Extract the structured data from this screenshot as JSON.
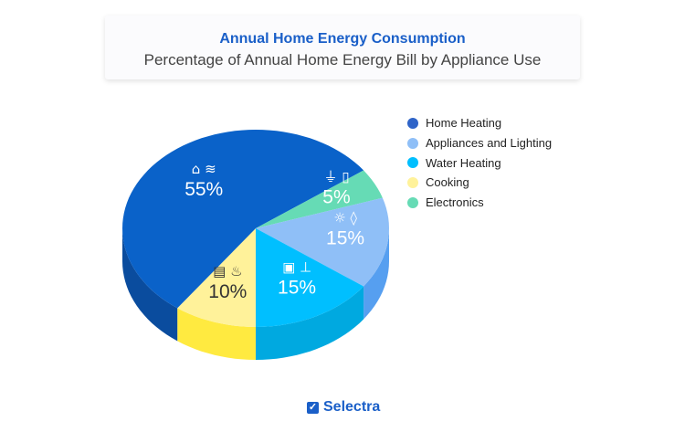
{
  "header": {
    "title": "Annual Home Energy Consumption",
    "subtitle": "Percentage of Annual Home Energy Bill by Appliance Use"
  },
  "chart_data": {
    "type": "pie",
    "style": "3d",
    "title": "Annual Home Energy Consumption",
    "subtitle": "Percentage of Annual Home Energy Bill by Appliance Use",
    "legend_position": "right",
    "slices": [
      {
        "name": "Home Heating",
        "value": 55,
        "label": "55%",
        "color": "#0a62c9",
        "side_color": "#0a4c9e",
        "label_color": "#ffffff",
        "icons": [
          "house-icon",
          "radiator-icon"
        ]
      },
      {
        "name": "Appliances and Lighting",
        "value": 15,
        "label": "15%",
        "color": "#8fbff7",
        "side_color": "#569ff0",
        "label_color": "#ffffff",
        "icons": [
          "lightbulb-icon",
          "water-drop-icon"
        ]
      },
      {
        "name": "Water Heating",
        "value": 15,
        "label": "15%",
        "color": "#00bfff",
        "side_color": "#00a9e0",
        "label_color": "#ffffff",
        "icons": [
          "water-heater-icon",
          "faucet-icon"
        ]
      },
      {
        "name": "Cooking",
        "value": 10,
        "label": "10%",
        "color": "#fff29a",
        "side_color": "#ffea40",
        "label_color": "#333333",
        "icons": [
          "oven-icon",
          "pan-icon"
        ]
      },
      {
        "name": "Electronics",
        "value": 5,
        "label": "5%",
        "color": "#66dbb5",
        "side_color": "#4cc79e",
        "label_color": "#ffffff",
        "icons": [
          "plug-icon",
          "phone-icon"
        ]
      }
    ]
  },
  "legend": {
    "items": [
      {
        "label": "Home Heating",
        "color": "#2f64c8"
      },
      {
        "label": "Appliances and Lighting",
        "color": "#8fbff7"
      },
      {
        "label": "Water Heating",
        "color": "#00bfff"
      },
      {
        "label": "Cooking",
        "color": "#fff29a"
      },
      {
        "label": "Electronics",
        "color": "#66dbb5"
      }
    ]
  },
  "footer": {
    "brand": "Selectra"
  }
}
